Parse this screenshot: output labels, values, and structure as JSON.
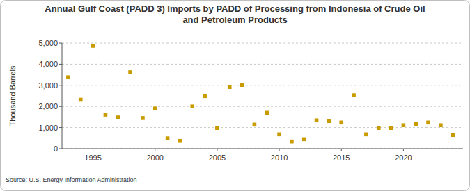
{
  "chart_data": {
    "type": "scatter",
    "title": "Annual Gulf Coast (PADD 3) Imports by PADD of Processing from Indonesia of Crude Oil and Petroleum Products",
    "y_label": "Thousand Barrels",
    "source": "Source: U.S. Energy Information Administration",
    "x": [
      1993,
      1994,
      1995,
      1996,
      1997,
      1998,
      1999,
      2000,
      2001,
      2002,
      2003,
      2004,
      2005,
      2006,
      2007,
      2008,
      2009,
      2010,
      2011,
      2012,
      2013,
      2014,
      2015,
      2016,
      2017,
      2018,
      2019,
      2020,
      2021,
      2022,
      2023,
      2024
    ],
    "series": [
      {
        "name": "Indonesia",
        "color": "#c89b00",
        "marker": "square",
        "values": [
          3380,
          2320,
          4870,
          1610,
          1480,
          3620,
          1450,
          1900,
          490,
          370,
          2000,
          2490,
          980,
          2920,
          3020,
          1140,
          1700,
          680,
          340,
          450,
          1340,
          1310,
          1240,
          2530,
          680,
          980,
          980,
          1110,
          1170,
          1240,
          1110,
          650
        ]
      }
    ],
    "xlim": [
      1992.5,
      2024.8
    ],
    "xticks": [
      1995,
      2000,
      2005,
      2010,
      2015,
      2020
    ],
    "ylim": [
      0,
      5000
    ],
    "yticks": [
      0,
      {
        "value": 1000,
        "label": "1,000"
      },
      {
        "value": 2000,
        "label": "2,000"
      },
      {
        "value": 3000,
        "label": "3,000"
      },
      {
        "value": 4000,
        "label": "4,000"
      },
      {
        "value": 5000,
        "label": "5,000"
      }
    ],
    "grid": true
  }
}
